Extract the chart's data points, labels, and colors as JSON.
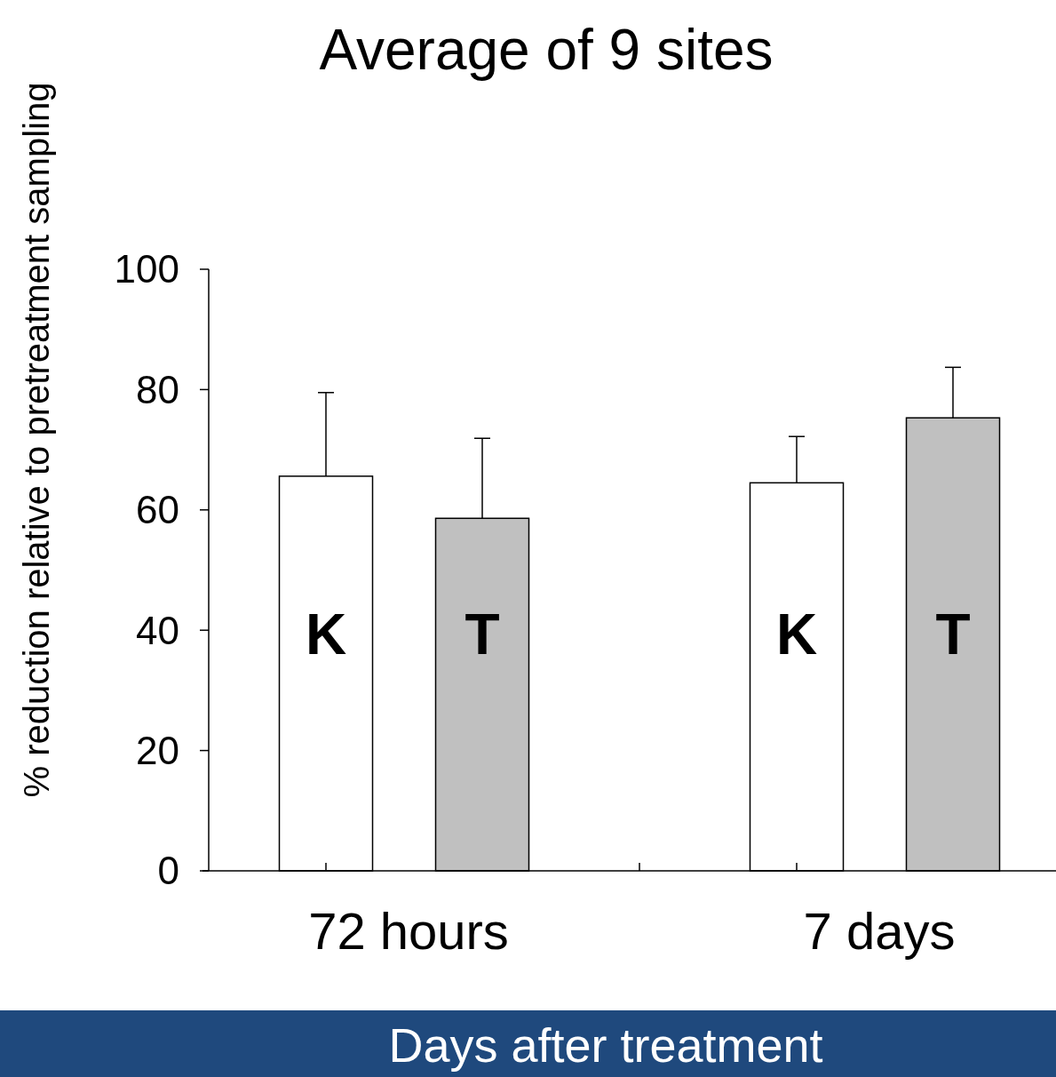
{
  "chart_data": {
    "type": "bar",
    "title": "Average of 9 sites",
    "xlabel": "Days after treatment",
    "ylabel": "% reduction relative to pretreatment sampling",
    "categories": [
      "72 hours",
      "7 days"
    ],
    "series": [
      {
        "name": "K",
        "color": "#ffffff",
        "values": [
          65.6,
          64.5
        ],
        "errors": [
          13.9,
          7.7
        ]
      },
      {
        "name": "T",
        "color": "#c0c0c0",
        "values": [
          58.6,
          75.3
        ],
        "errors": [
          13.3,
          8.4
        ]
      }
    ],
    "ylim": [
      0,
      100
    ],
    "yticks": [
      0,
      20,
      40,
      60,
      80,
      100
    ],
    "grid": false
  }
}
